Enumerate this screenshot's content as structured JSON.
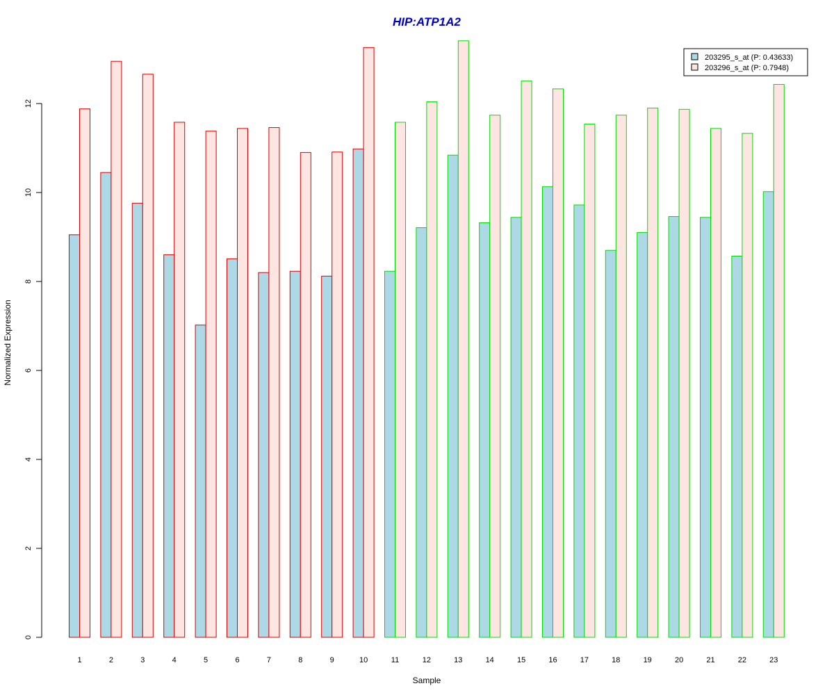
{
  "chart_data": {
    "type": "bar",
    "title": "HIP:ATP1A2",
    "xlabel": "Sample",
    "ylabel": "Normalized Expression",
    "ylim": [
      0,
      13.5
    ],
    "yticks": [
      "0",
      "2",
      "4",
      "6",
      "8",
      "10",
      "12"
    ],
    "grid": false,
    "legend_position": "top-right",
    "categories": [
      "1",
      "2",
      "3",
      "4",
      "5",
      "6",
      "7",
      "8",
      "9",
      "10",
      "11",
      "12",
      "13",
      "14",
      "15",
      "16",
      "17",
      "18",
      "19",
      "20",
      "21",
      "22",
      "23"
    ],
    "groups": [
      {
        "samples": "1-10",
        "border_color": "#dd0000"
      },
      {
        "samples": "11-23",
        "border_color": "#00dd00"
      }
    ],
    "series": [
      {
        "name": "203295_s_at (P: 0.43633)",
        "fill": "#add8e6",
        "values": [
          9.05,
          10.45,
          9.76,
          8.6,
          7.02,
          8.51,
          8.2,
          8.23,
          8.12,
          10.98,
          8.23,
          9.21,
          10.84,
          9.32,
          9.44,
          10.13,
          9.72,
          8.7,
          9.1,
          9.46,
          9.44,
          8.57,
          10.02
        ]
      },
      {
        "name": "203296_s_at (P: 0.7948)",
        "fill": "#fde6e1",
        "values": [
          11.88,
          12.95,
          12.66,
          11.58,
          11.38,
          11.44,
          11.46,
          10.9,
          10.91,
          13.26,
          11.58,
          12.04,
          13.41,
          11.74,
          12.51,
          12.33,
          11.54,
          11.74,
          11.9,
          11.87,
          11.44,
          11.33,
          12.43
        ]
      }
    ]
  },
  "colors": {
    "title": "#0000cc",
    "axis": "#000000"
  }
}
